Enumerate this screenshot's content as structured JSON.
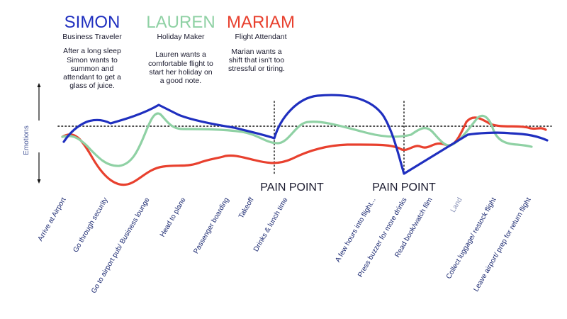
{
  "personas": [
    {
      "name": "SIMON",
      "role": "Business Traveler",
      "description": [
        "After a long sleep",
        "Simon wants to",
        "summon and",
        "attendant to get a",
        "glass of juice."
      ],
      "color": "#1f2fbf"
    },
    {
      "name": "LAUREN",
      "role": "Holiday Maker",
      "description": [
        "Lauren wants a",
        "comfortable flight to",
        "start her holiday on",
        "a good note."
      ],
      "color": "#8fd1a4"
    },
    {
      "name": "MARIAM",
      "role": "Flight Attendant",
      "description": [
        "Marian wants a",
        "shift that isn't too",
        "stressful or tiring."
      ],
      "color": "#e8402e"
    }
  ],
  "y_axis_label": "Emotions",
  "pain_points": [
    {
      "label": "PAIN POINT"
    },
    {
      "label": "PAIN POINT"
    }
  ],
  "stages": [
    {
      "label": "Arrive at Airport",
      "muted": false
    },
    {
      "label": "Go through security",
      "muted": false
    },
    {
      "label": "Go to airport pub/ Business lounge",
      "muted": false
    },
    {
      "label": "Head to plane",
      "muted": false
    },
    {
      "label": "Passenger boarding",
      "muted": false
    },
    {
      "label": "Takeoff",
      "muted": false
    },
    {
      "label": "Drinks & lunch time",
      "muted": false
    },
    {
      "label": "A few hours into flight...",
      "muted": false
    },
    {
      "label": "Press buzzer for more drinks",
      "muted": false
    },
    {
      "label": "Read book/watch film",
      "muted": false
    },
    {
      "label": "Land",
      "muted": true
    },
    {
      "label": "Collect luggage/ restock flight",
      "muted": false
    },
    {
      "label": "Leave airport/ prep for return flight",
      "muted": false
    }
  ],
  "colors": {
    "text": "#1a1a2e",
    "stage_text": "#1a2870",
    "baseline": "#111111"
  }
}
